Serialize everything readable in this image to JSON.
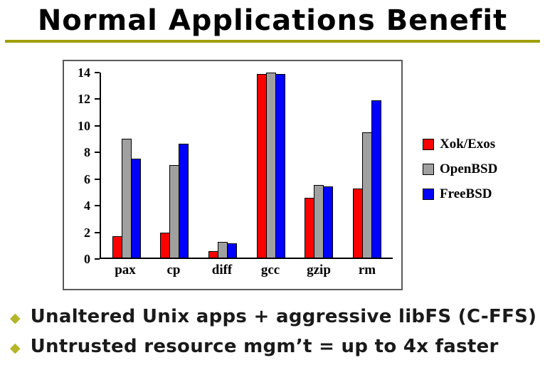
{
  "title": "Normal Applications Benefit",
  "colors": {
    "underline": "#a0a000",
    "bullet_diamond": "#b5b52a",
    "xok_exos": "#ff0000",
    "openbsd": "#a0a0a0",
    "freebsd": "#0000ff"
  },
  "bullets": [
    {
      "text": "Unaltered Unix apps + aggressive libFS (C-FFS)"
    },
    {
      "text": "Untrusted resource mgm’t = up to 4x faster"
    }
  ],
  "chart_data": {
    "type": "bar",
    "categories": [
      "pax",
      "cp",
      "diff",
      "gcc",
      "gzip",
      "rm"
    ],
    "series": [
      {
        "name": "Xok/Exos",
        "color": "#ff0000",
        "values": [
          1.6,
          1.9,
          0.5,
          13.9,
          4.5,
          5.2
        ]
      },
      {
        "name": "OpenBSD",
        "color": "#a0a0a0",
        "values": [
          9.0,
          7.0,
          1.2,
          14.0,
          5.5,
          9.5
        ]
      },
      {
        "name": "FreeBSD",
        "color": "#0000ff",
        "values": [
          7.5,
          8.6,
          1.1,
          13.9,
          5.4,
          11.9
        ]
      }
    ],
    "title": "",
    "xlabel": "",
    "ylabel": "",
    "ylim": [
      0,
      14
    ],
    "yticks": [
      0,
      2,
      4,
      6,
      8,
      10,
      12,
      14
    ],
    "grid": false,
    "legend_position": "right"
  }
}
